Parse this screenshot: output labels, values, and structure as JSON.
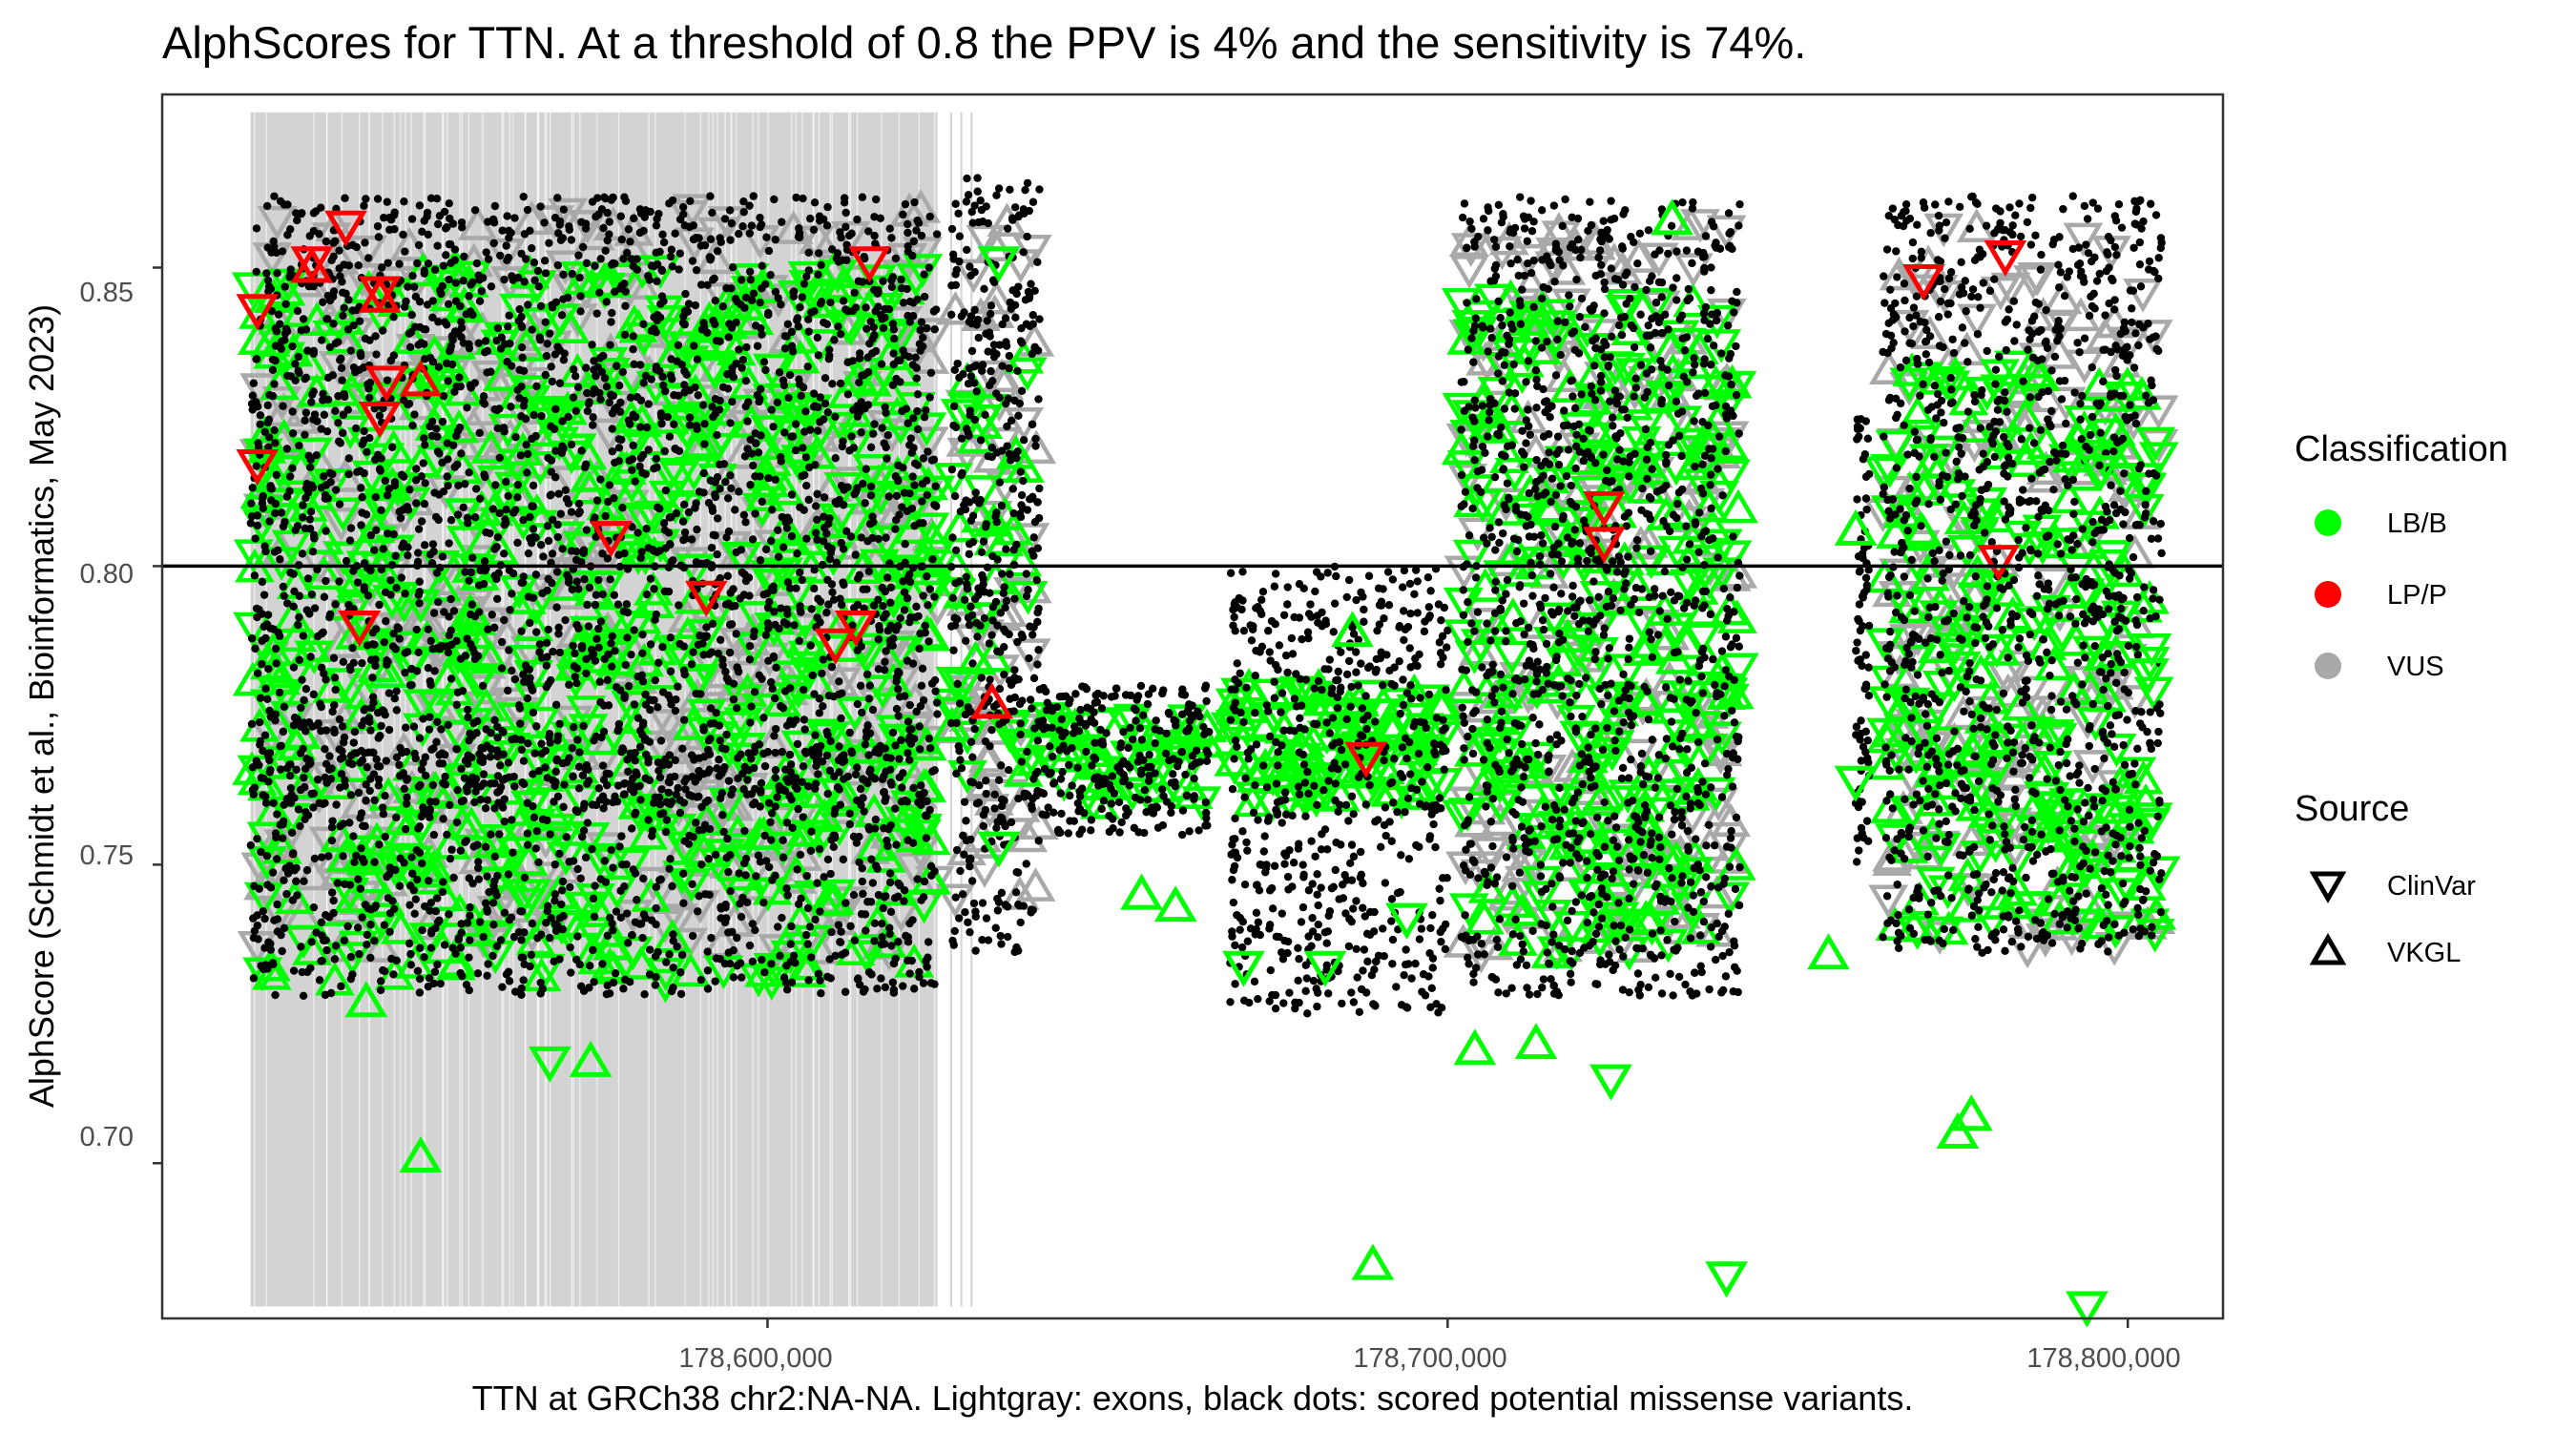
{
  "chart_data": {
    "type": "scatter",
    "title": "AlphScores for TTN. At a threshold of 0.8 the PPV is 4% and the sensitivity is 74%.",
    "xlabel": "TTN at GRCh38 chr2:NA-NA. Lightgray: exons, black dots: scored potential missense variants.",
    "ylabel": "AlphScore (Schmidt et al.,  Bioinformatics, May 2023)",
    "xlim": [
      178511000,
      178814000
    ],
    "ylim": [
      0.674,
      0.879
    ],
    "x_ticks": [
      178600000,
      178700000,
      178800000
    ],
    "x_tick_labels": [
      "178,600,000",
      "178,700,000",
      "178,800,000"
    ],
    "y_ticks": [
      0.7,
      0.75,
      0.8,
      0.85
    ],
    "y_tick_labels": [
      "0.70",
      "0.75",
      "0.80",
      "0.85"
    ],
    "threshold": 0.8,
    "exon_band": {
      "x_start": 178524000,
      "x_end": 178625000,
      "y_range": [
        0.676,
        0.876
      ],
      "color": "#d3d3d3"
    },
    "grid": false,
    "legend_placement": "right",
    "legend": {
      "classification": {
        "title": "Classification",
        "items": [
          {
            "label": "LB/B",
            "color": "#00ff00"
          },
          {
            "label": "LP/P",
            "color": "#ff0000"
          },
          {
            "label": "VUS",
            "color": "#a9a9a9"
          }
        ]
      },
      "source": {
        "title": "Source",
        "items": [
          {
            "label": "ClinVar",
            "shape": "triangle-down"
          },
          {
            "label": "VKGL",
            "shape": "triangle-up"
          }
        ]
      }
    },
    "series": [
      {
        "name": "LP/P",
        "color": "#ff0000",
        "points": [
          {
            "x": 178525000,
            "y": 0.843,
            "source": "ClinVar"
          },
          {
            "x": 178525000,
            "y": 0.817,
            "source": "ClinVar"
          },
          {
            "x": 178533000,
            "y": 0.851,
            "source": "ClinVar"
          },
          {
            "x": 178533000,
            "y": 0.85,
            "source": "VKGL"
          },
          {
            "x": 178538000,
            "y": 0.857,
            "source": "ClinVar"
          },
          {
            "x": 178543000,
            "y": 0.846,
            "source": "ClinVar"
          },
          {
            "x": 178543000,
            "y": 0.845,
            "source": "VKGL"
          },
          {
            "x": 178544000,
            "y": 0.831,
            "source": "ClinVar"
          },
          {
            "x": 178543000,
            "y": 0.825,
            "source": "ClinVar"
          },
          {
            "x": 178549000,
            "y": 0.831,
            "source": "VKGL"
          },
          {
            "x": 178540000,
            "y": 0.79,
            "source": "ClinVar"
          },
          {
            "x": 178577000,
            "y": 0.805,
            "source": "ClinVar"
          },
          {
            "x": 178591000,
            "y": 0.795,
            "source": "ClinVar"
          },
          {
            "x": 178610000,
            "y": 0.787,
            "source": "ClinVar"
          },
          {
            "x": 178613000,
            "y": 0.79,
            "source": "ClinVar"
          },
          {
            "x": 178615000,
            "y": 0.851,
            "source": "ClinVar"
          },
          {
            "x": 178633000,
            "y": 0.777,
            "source": "VKGL"
          },
          {
            "x": 178688000,
            "y": 0.768,
            "source": "ClinVar"
          },
          {
            "x": 178723000,
            "y": 0.81,
            "source": "ClinVar"
          },
          {
            "x": 178723000,
            "y": 0.804,
            "source": "ClinVar"
          },
          {
            "x": 178770000,
            "y": 0.848,
            "source": "ClinVar"
          },
          {
            "x": 178781000,
            "y": 0.801,
            "source": "ClinVar"
          },
          {
            "x": 178782000,
            "y": 0.852,
            "source": "ClinVar"
          }
        ]
      },
      {
        "name": "LB/B",
        "color": "#00ff00",
        "points": [
          {
            "x": 178541000,
            "y": 0.727,
            "source": "VKGL"
          },
          {
            "x": 178549000,
            "y": 0.701,
            "source": "VKGL"
          },
          {
            "x": 178568000,
            "y": 0.717,
            "source": "ClinVar"
          },
          {
            "x": 178574000,
            "y": 0.717,
            "source": "VKGL"
          },
          {
            "x": 178689000,
            "y": 0.683,
            "source": "VKGL"
          },
          {
            "x": 178704000,
            "y": 0.719,
            "source": "VKGL"
          },
          {
            "x": 178713000,
            "y": 0.72,
            "source": "VKGL"
          },
          {
            "x": 178724000,
            "y": 0.714,
            "source": "ClinVar"
          },
          {
            "x": 178741000,
            "y": 0.681,
            "source": "ClinVar"
          },
          {
            "x": 178775000,
            "y": 0.705,
            "source": "VKGL"
          },
          {
            "x": 178777000,
            "y": 0.708,
            "source": "VKGL"
          },
          {
            "x": 178794000,
            "y": 0.676,
            "source": "ClinVar"
          },
          {
            "x": 178760000,
            "y": 0.806,
            "source": "VKGL"
          },
          {
            "x": 178760000,
            "y": 0.764,
            "source": "ClinVar"
          },
          {
            "x": 178634000,
            "y": 0.851,
            "source": "ClinVar"
          },
          {
            "x": 178634000,
            "y": 0.753,
            "source": "ClinVar"
          },
          {
            "x": 178655000,
            "y": 0.745,
            "source": "VKGL"
          },
          {
            "x": 178660000,
            "y": 0.743,
            "source": "VKGL"
          },
          {
            "x": 178670000,
            "y": 0.733,
            "source": "ClinVar"
          },
          {
            "x": 178682000,
            "y": 0.733,
            "source": "ClinVar"
          },
          {
            "x": 178686000,
            "y": 0.789,
            "source": "VKGL"
          },
          {
            "x": 178694000,
            "y": 0.741,
            "source": "ClinVar"
          },
          {
            "x": 178733000,
            "y": 0.858,
            "source": "VKGL"
          },
          {
            "x": 178756000,
            "y": 0.735,
            "source": "VKGL"
          },
          {
            "x": 178796000,
            "y": 0.816,
            "source": "ClinVar"
          },
          {
            "x": 178803000,
            "y": 0.782,
            "source": "ClinVar"
          }
        ]
      }
    ]
  }
}
